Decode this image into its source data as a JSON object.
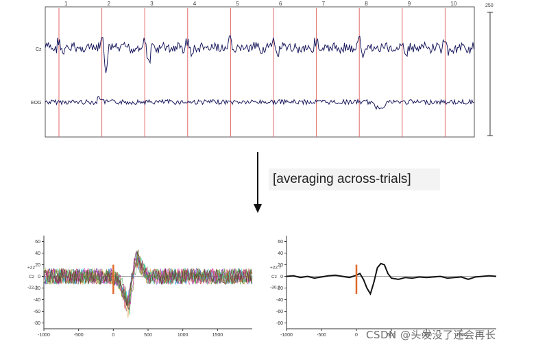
{
  "top_panel": {
    "trial_markers": [
      "1",
      "2",
      "3",
      "4",
      "5",
      "6",
      "7",
      "8",
      "9",
      "10"
    ],
    "channels": [
      "Cz",
      "EOG"
    ],
    "scale_label": "250"
  },
  "arrow_label": "[averaging across-trials]",
  "colors": {
    "eeg_trace": "#1a1a5e",
    "marker_line": "#e06a6a",
    "onset_bar": "#e06a2a",
    "axis": "#333333"
  },
  "chart_data": [
    {
      "type": "line",
      "title": "",
      "xlabel": "",
      "ylabel": "",
      "channel_label": "Cz",
      "scale_labels": {
        "upper": "+22",
        "lower": "-22.1"
      },
      "xlim": [
        -1000,
        2000
      ],
      "ylim": [
        -90,
        70
      ],
      "x_ticks": [
        -1000,
        -500,
        0,
        500,
        1000,
        1500
      ],
      "y_ticks": [
        60,
        40,
        20,
        0,
        -20,
        -40,
        -60,
        -80
      ],
      "onset_x": 0,
      "series_count": 10,
      "waveform": {
        "x": [
          -1000,
          0,
          100,
          180,
          220,
          300,
          350,
          420,
          500,
          2000
        ],
        "y": [
          0,
          0,
          -10,
          -40,
          -55,
          10,
          35,
          15,
          0,
          0
        ]
      }
    },
    {
      "type": "line",
      "title": "",
      "xlabel": "",
      "ylabel": "",
      "channel_label": "Cz",
      "scale_labels": {
        "upper": "+22.7",
        "lower": "-30.9"
      },
      "xlim": [
        -1000,
        2000
      ],
      "ylim": [
        -90,
        70
      ],
      "x_ticks": [
        -1000,
        -500,
        0,
        500,
        1000,
        1500
      ],
      "y_ticks": [
        60,
        40,
        20,
        0,
        -20,
        -40,
        -60,
        -80
      ],
      "onset_x": 0,
      "series": [
        {
          "x": [
            -1000,
            -900,
            -800,
            -700,
            -600,
            -500,
            -400,
            -300,
            -200,
            -100,
            0,
            50,
            100,
            150,
            200,
            250,
            300,
            350,
            400,
            450,
            500,
            600,
            700,
            800,
            900,
            1000,
            1100,
            1200,
            1300,
            1400,
            1500,
            1600,
            1700,
            1800,
            1900,
            2000
          ],
          "y": [
            0,
            1,
            -2,
            0,
            -3,
            -1,
            1,
            2,
            0,
            -2,
            2,
            5,
            -5,
            -20,
            -30,
            -10,
            15,
            22,
            20,
            5,
            -3,
            -5,
            -2,
            -3,
            -1,
            -2,
            -1,
            0,
            -3,
            -2,
            -1,
            -5,
            -1,
            0,
            1,
            0
          ]
        }
      ]
    }
  ],
  "watermark": "CSDN @头发没了还会再长"
}
